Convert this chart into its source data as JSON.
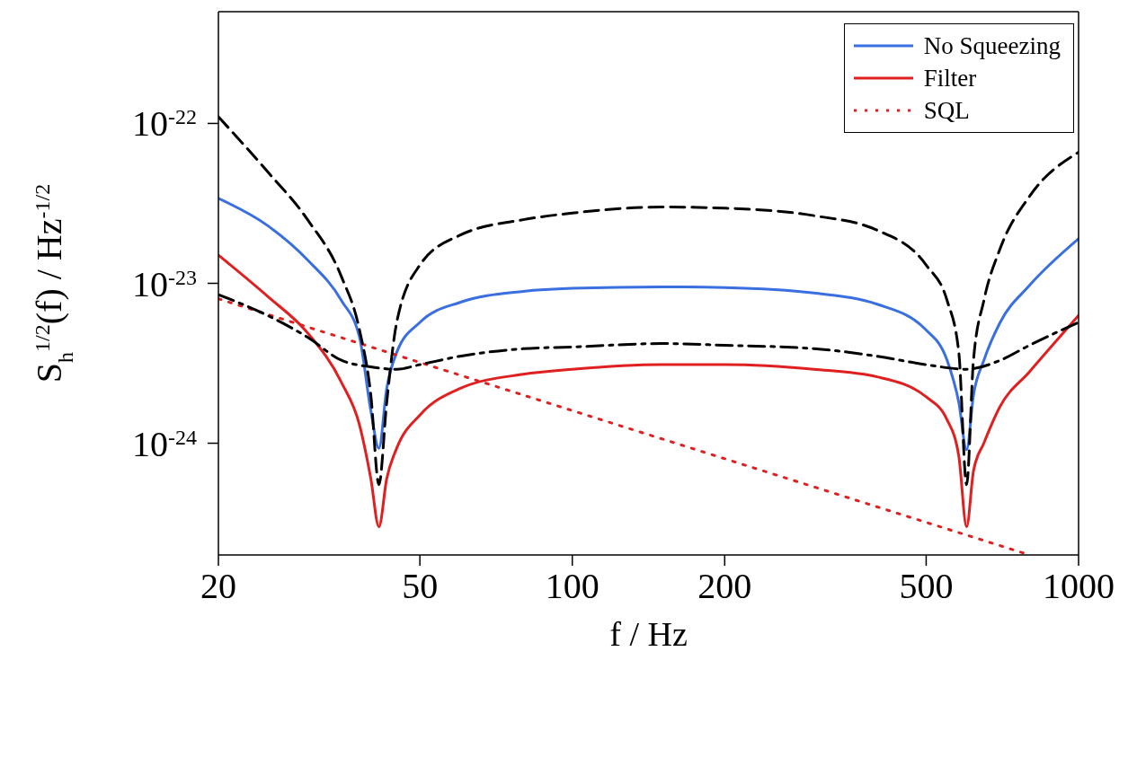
{
  "chart_data": {
    "type": "line",
    "xlabel": "f / Hz",
    "ylabel": "S$_{h}$$^{1/2}$(f) / Hz$^{-1/2}$",
    "log": "xy",
    "xlim": [
      20,
      1000
    ],
    "xticks": [
      20,
      50,
      100,
      200,
      500,
      1000
    ],
    "ylim": [
      2e-25,
      5e-22
    ],
    "yticks": [
      {
        "value": 1e-24,
        "label": "10$^{-24}$"
      },
      {
        "value": 1e-23,
        "label": "10$^{-23}$"
      },
      {
        "value": 1e-22,
        "label": "10$^{-22}$"
      }
    ],
    "grid": false,
    "legend": "top right",
    "marker": "none",
    "series": [
      {
        "name": "No Squeezing",
        "color": "#3a6fe0",
        "line_style": "solid",
        "x": [
          20,
          25,
          30,
          35,
          38,
          40,
          41.5,
          43,
          45,
          50,
          60,
          80,
          100,
          150,
          200,
          300,
          400,
          500,
          550,
          580,
          601,
          620,
          650,
          700,
          800,
          1000
        ],
        "values": [
          3.4e-23,
          2.3e-23,
          1.4e-23,
          7.8e-24,
          4.6e-24,
          1.6e-24,
          9.3e-25,
          2.2e-24,
          3.7e-24,
          5.7e-24,
          7.6e-24,
          8.9e-24,
          9.3e-24,
          9.5e-24,
          9.4e-24,
          8.7e-24,
          7.4e-24,
          5.1e-24,
          3.3e-24,
          1.8e-24,
          9.1e-25,
          2e-24,
          3.3e-24,
          5.7e-24,
          9.7e-24,
          1.9e-23
        ]
      },
      {
        "name": "Filter",
        "color": "#e02020",
        "line_style": "solid",
        "x": [
          20,
          25,
          30,
          35,
          38,
          40,
          41.5,
          43,
          45,
          50,
          60,
          80,
          100,
          150,
          200,
          300,
          400,
          500,
          550,
          580,
          601,
          620,
          650,
          700,
          800,
          1000
        ],
        "values": [
          1.5e-23,
          8.3e-24,
          4.9e-24,
          2.4e-24,
          1.3e-24,
          6e-25,
          3e-25,
          6e-25,
          9.3e-25,
          1.5e-24,
          2.2e-24,
          2.7e-24,
          2.9e-24,
          3.1e-24,
          3.1e-24,
          2.9e-24,
          2.6e-24,
          1.95e-24,
          1.4e-24,
          8.3e-25,
          3e-25,
          6.7e-25,
          1e-24,
          1.7e-24,
          2.8e-24,
          6.3e-24
        ]
      },
      {
        "name": "SQL",
        "color": "#e02020",
        "line_style": "dotted",
        "x": [
          20,
          800
        ],
        "values": [
          8e-24,
          2e-25
        ]
      },
      {
        "color": "#000000",
        "line_style": "dashed",
        "x": [
          20,
          25,
          30,
          35,
          38,
          40,
          41.5,
          43,
          45,
          50,
          60,
          80,
          100,
          150,
          200,
          300,
          400,
          500,
          550,
          580,
          601,
          620,
          650,
          700,
          800,
          1000
        ],
        "values": [
          1.1e-22,
          5e-23,
          2.5e-23,
          1.1e-23,
          5.1e-24,
          2e-24,
          5.5e-25,
          1.8e-24,
          5.7e-24,
          1.3e-23,
          2e-23,
          2.5e-23,
          2.75e-23,
          3e-23,
          2.95e-23,
          2.65e-23,
          2.15e-23,
          1.3e-23,
          7.8e-24,
          3.7e-24,
          5.5e-25,
          3.3e-24,
          7.8e-24,
          1.65e-23,
          3.5e-23,
          6.6e-23
        ]
      },
      {
        "color": "#000000",
        "line_style": "dashdot",
        "x": [
          20,
          25,
          30,
          35,
          40,
          45,
          50,
          60,
          80,
          100,
          150,
          200,
          300,
          400,
          500,
          600,
          700,
          800,
          1000
        ],
        "values": [
          8.5e-24,
          6.3e-24,
          4.6e-24,
          3.3e-24,
          3e-24,
          2.9e-24,
          3.1e-24,
          3.5e-24,
          3.9e-24,
          4e-24,
          4.2e-24,
          4.1e-24,
          3.9e-24,
          3.5e-24,
          3.1e-24,
          2.9e-24,
          3.3e-24,
          4.1e-24,
          5.7e-24
        ]
      }
    ]
  }
}
